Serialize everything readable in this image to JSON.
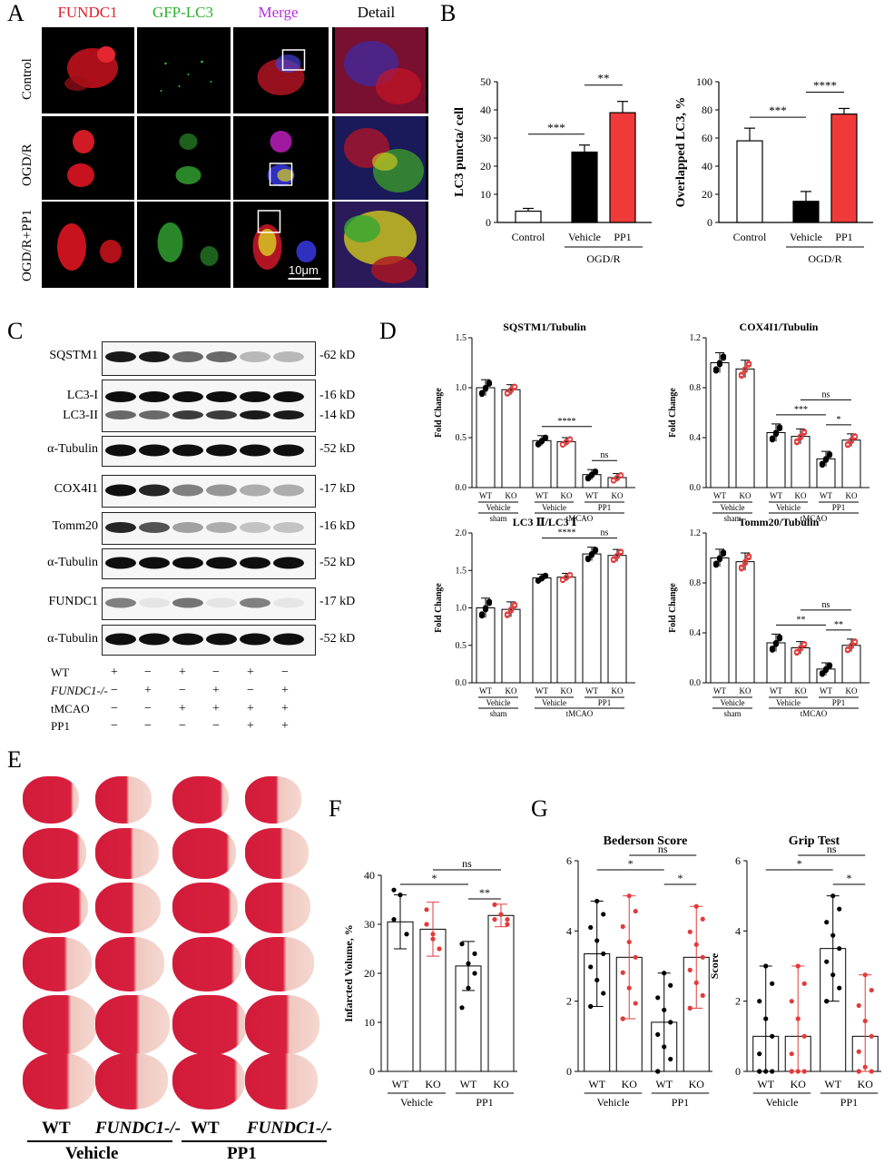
{
  "panels": {
    "A": "A",
    "B": "B",
    "C": "C",
    "D": "D",
    "E": "E",
    "F": "F",
    "G": "G"
  },
  "panelA": {
    "columns": [
      "FUNDC1",
      "GFP-LC3",
      "Merge",
      "Detail"
    ],
    "column_colors": [
      "#e0202a",
      "#2bb02b",
      "#b52ed6",
      "#000000"
    ],
    "rows": [
      "Control",
      "OGD/R",
      "OGD/R+PP1"
    ],
    "scale_bar": "10μm"
  },
  "panelB": {
    "charts": [
      {
        "type": "bar",
        "ylabel": "LC3 puncta/ cell",
        "ylim": [
          0,
          50
        ],
        "yticks": [
          0,
          10,
          20,
          30,
          40,
          50
        ],
        "categories": [
          "Control",
          "Vehicle",
          "PP1"
        ],
        "values": [
          4,
          25,
          39
        ],
        "errors": [
          1,
          2.5,
          4
        ],
        "colors": [
          "#ffffff",
          "#000000",
          "#f03a3a"
        ],
        "group_label": "OGD/R",
        "significance": [
          {
            "pair": [
              0,
              1
            ],
            "label": "***"
          },
          {
            "pair": [
              1,
              2
            ],
            "label": "**"
          }
        ]
      },
      {
        "type": "bar",
        "ylabel": "Overlapped LC3, %",
        "ylim": [
          0,
          100
        ],
        "yticks": [
          0,
          20,
          40,
          60,
          80,
          100
        ],
        "categories": [
          "Control",
          "Vehicle",
          "PP1"
        ],
        "values": [
          58,
          15,
          77
        ],
        "errors": [
          9,
          7,
          4
        ],
        "colors": [
          "#ffffff",
          "#000000",
          "#f03a3a"
        ],
        "group_label": "OGD/R",
        "significance": [
          {
            "pair": [
              0,
              1
            ],
            "label": "***"
          },
          {
            "pair": [
              1,
              2
            ],
            "label": "****"
          }
        ]
      }
    ]
  },
  "panelC": {
    "bands": [
      {
        "name": "SQSTM1",
        "kd": "-62 kD"
      },
      {
        "name": "LC3-I",
        "kd": "-16 kD"
      },
      {
        "name": "LC3-II",
        "kd": "-14 kD"
      },
      {
        "name": "α-Tubulin",
        "kd": "-52 kD"
      },
      {
        "name": "COX4I1",
        "kd": "-17 kD"
      },
      {
        "name": "Tomm20",
        "kd": "-16 kD"
      },
      {
        "name": "α-Tubulin",
        "kd": "-52 kD"
      },
      {
        "name": "FUNDC1",
        "kd": "-17 kD"
      },
      {
        "name": "α-Tubulin",
        "kd": "-52 kD"
      }
    ],
    "conditions": [
      {
        "name": "WT",
        "values": [
          "+",
          "−",
          "+",
          "−",
          "+",
          "−"
        ]
      },
      {
        "name": "FUNDC1-/-",
        "values": [
          "−",
          "+",
          "−",
          "+",
          "−",
          "+"
        ]
      },
      {
        "name": "tMCAO",
        "values": [
          "−",
          "−",
          "+",
          "+",
          "+",
          "+"
        ]
      },
      {
        "name": "PP1",
        "values": [
          "−",
          "−",
          "−",
          "−",
          "+",
          "+"
        ]
      }
    ]
  },
  "panelD": {
    "ylabel": "Fold Change",
    "xticks": [
      "WT",
      "KO",
      "WT",
      "KO",
      "WT",
      "KO"
    ],
    "subgroups": [
      "Vehicle",
      "Vehicle",
      "PP1"
    ],
    "groups": [
      "sham",
      "tMCAO"
    ],
    "charts": [
      {
        "title": "SQSTM1/Tubulin",
        "ylim": [
          0,
          1.5
        ],
        "yticks": [
          "0.0",
          "0.5",
          "1.0",
          "1.5"
        ],
        "values": [
          1.0,
          0.98,
          0.47,
          0.46,
          0.13,
          0.1
        ],
        "errors": [
          0.08,
          0.05,
          0.05,
          0.04,
          0.05,
          0.04
        ],
        "significance": [
          {
            "pair": [
              2,
              4
            ],
            "label": "****"
          },
          {
            "pair": [
              4,
              5
            ],
            "label": "ns"
          }
        ]
      },
      {
        "title": "COX4I1/Tubulin",
        "ylim": [
          0,
          1.2
        ],
        "yticks": [
          "0.0",
          "0.4",
          "0.8",
          "1.2"
        ],
        "values": [
          1.0,
          0.95,
          0.44,
          0.41,
          0.23,
          0.38
        ],
        "errors": [
          0.08,
          0.07,
          0.07,
          0.06,
          0.06,
          0.05
        ],
        "significance": [
          {
            "pair": [
              2,
              4
            ],
            "label": "***"
          },
          {
            "pair": [
              4,
              5
            ],
            "label": "*"
          },
          {
            "pair": [
              3,
              5
            ],
            "label": "ns"
          }
        ]
      },
      {
        "title": "LC3 Ⅱ/LC3 Ⅰ",
        "ylim": [
          0,
          2.0
        ],
        "yticks": [
          "0.0",
          "0.5",
          "1.0",
          "1.5",
          "2.0"
        ],
        "values": [
          1.0,
          0.98,
          1.4,
          1.41,
          1.72,
          1.7
        ],
        "errors": [
          0.13,
          0.1,
          0.05,
          0.05,
          0.09,
          0.08
        ],
        "significance": [
          {
            "pair": [
              2,
              4
            ],
            "label": "****"
          },
          {
            "pair": [
              4,
              5
            ],
            "label": "ns"
          }
        ]
      },
      {
        "title": "Tomm20/Tubulin",
        "ylim": [
          0,
          1.2
        ],
        "yticks": [
          "0.0",
          "0.4",
          "0.8",
          "1.2"
        ],
        "values": [
          1.0,
          0.97,
          0.32,
          0.28,
          0.11,
          0.3
        ],
        "errors": [
          0.07,
          0.07,
          0.07,
          0.05,
          0.05,
          0.05
        ],
        "significance": [
          {
            "pair": [
              2,
              4
            ],
            "label": "**"
          },
          {
            "pair": [
              4,
              5
            ],
            "label": "**"
          },
          {
            "pair": [
              3,
              5
            ],
            "label": "ns"
          }
        ]
      }
    ]
  },
  "panelE": {
    "labels": [
      "WT",
      "FUNDC1-/-",
      "WT",
      "FUNDC1-/-"
    ],
    "groups": [
      "Vehicle",
      "PP1"
    ]
  },
  "panelF": {
    "type": "bar",
    "ylabel": "Infarcted Volume, %",
    "ylim": [
      0,
      40
    ],
    "yticks": [
      0,
      10,
      20,
      30,
      40
    ],
    "categories": [
      "WT",
      "KO",
      "WT",
      "KO"
    ],
    "groups": [
      "Vehicle",
      "PP1"
    ],
    "values": [
      30.5,
      29,
      21.5,
      31.8
    ],
    "errors": [
      5.5,
      5.5,
      5,
      2.3
    ],
    "points": [
      [
        37,
        36,
        28,
        31
      ],
      [
        33,
        28,
        25,
        30,
        27
      ],
      [
        26,
        22,
        20,
        13,
        17,
        24
      ],
      [
        34,
        32,
        30,
        31,
        32,
        31
      ]
    ],
    "significance": [
      {
        "pair": [
          0,
          2
        ],
        "label": "*"
      },
      {
        "pair": [
          2,
          3
        ],
        "label": "**"
      },
      {
        "pair": [
          1,
          3
        ],
        "label": "ns"
      }
    ]
  },
  "panelG": {
    "charts": [
      {
        "title": "Bederson Score",
        "ylabel": "",
        "ylim": [
          0,
          6
        ],
        "yticks": [
          0,
          2,
          4,
          6
        ],
        "categories": [
          "WT",
          "KO",
          "WT",
          "KO"
        ],
        "groups": [
          "Vehicle",
          "PP1"
        ],
        "values": [
          3.35,
          3.25,
          1.4,
          3.25
        ],
        "errors": [
          1.5,
          1.75,
          1.4,
          1.45
        ],
        "significance": [
          {
            "pair": [
              0,
              2
            ],
            "label": "*"
          },
          {
            "pair": [
              2,
              3
            ],
            "label": "*"
          },
          {
            "pair": [
              1,
              3
            ],
            "label": "ns"
          }
        ]
      },
      {
        "title": "Grip Test",
        "ylabel": "Score",
        "ylim": [
          0,
          6
        ],
        "yticks": [
          0,
          2,
          4,
          6
        ],
        "categories": [
          "WT",
          "KO",
          "WT",
          "KO"
        ],
        "groups": [
          "Vehicle",
          "PP1"
        ],
        "values": [
          1.0,
          1.0,
          3.5,
          1.0
        ],
        "errors": [
          2.0,
          2.0,
          1.5,
          1.75
        ],
        "significance": [
          {
            "pair": [
              0,
              2
            ],
            "label": "*"
          },
          {
            "pair": [
              2,
              3
            ],
            "label": "*"
          },
          {
            "pair": [
              1,
              3
            ],
            "label": "ns"
          }
        ]
      }
    ]
  },
  "chart_data": [
    {
      "type": "bar",
      "panel": "B",
      "ylabel": "LC3 puncta/ cell",
      "categories": [
        "Control",
        "Vehicle",
        "PP1"
      ],
      "values": [
        4,
        25,
        39
      ],
      "ylim": [
        0,
        50
      ]
    },
    {
      "type": "bar",
      "panel": "B",
      "ylabel": "Overlapped LC3, %",
      "categories": [
        "Control",
        "Vehicle",
        "PP1"
      ],
      "values": [
        58,
        15,
        77
      ],
      "ylim": [
        0,
        100
      ]
    },
    {
      "type": "bar",
      "panel": "D",
      "title": "SQSTM1/Tubulin",
      "values": [
        1.0,
        0.98,
        0.47,
        0.46,
        0.13,
        0.1
      ]
    },
    {
      "type": "bar",
      "panel": "D",
      "title": "COX4I1/Tubulin",
      "values": [
        1.0,
        0.95,
        0.44,
        0.41,
        0.23,
        0.38
      ]
    },
    {
      "type": "bar",
      "panel": "D",
      "title": "LC3 Ⅱ/LC3 Ⅰ",
      "values": [
        1.0,
        0.98,
        1.4,
        1.41,
        1.72,
        1.7
      ]
    },
    {
      "type": "bar",
      "panel": "D",
      "title": "Tomm20/Tubulin",
      "values": [
        1.0,
        0.97,
        0.32,
        0.28,
        0.11,
        0.3
      ]
    },
    {
      "type": "bar",
      "panel": "F",
      "ylabel": "Infarcted Volume, %",
      "categories": [
        "WT",
        "KO",
        "WT",
        "KO"
      ],
      "values": [
        30.5,
        29,
        21.5,
        31.8
      ],
      "ylim": [
        0,
        40
      ]
    },
    {
      "type": "bar",
      "panel": "G",
      "title": "Bederson Score",
      "categories": [
        "WT",
        "KO",
        "WT",
        "KO"
      ],
      "values": [
        3.35,
        3.25,
        1.4,
        3.25
      ],
      "ylim": [
        0,
        6
      ]
    },
    {
      "type": "bar",
      "panel": "G",
      "title": "Grip Test",
      "ylabel": "Score",
      "categories": [
        "WT",
        "KO",
        "WT",
        "KO"
      ],
      "values": [
        1.0,
        1.0,
        3.5,
        1.0
      ],
      "ylim": [
        0,
        6
      ]
    }
  ]
}
